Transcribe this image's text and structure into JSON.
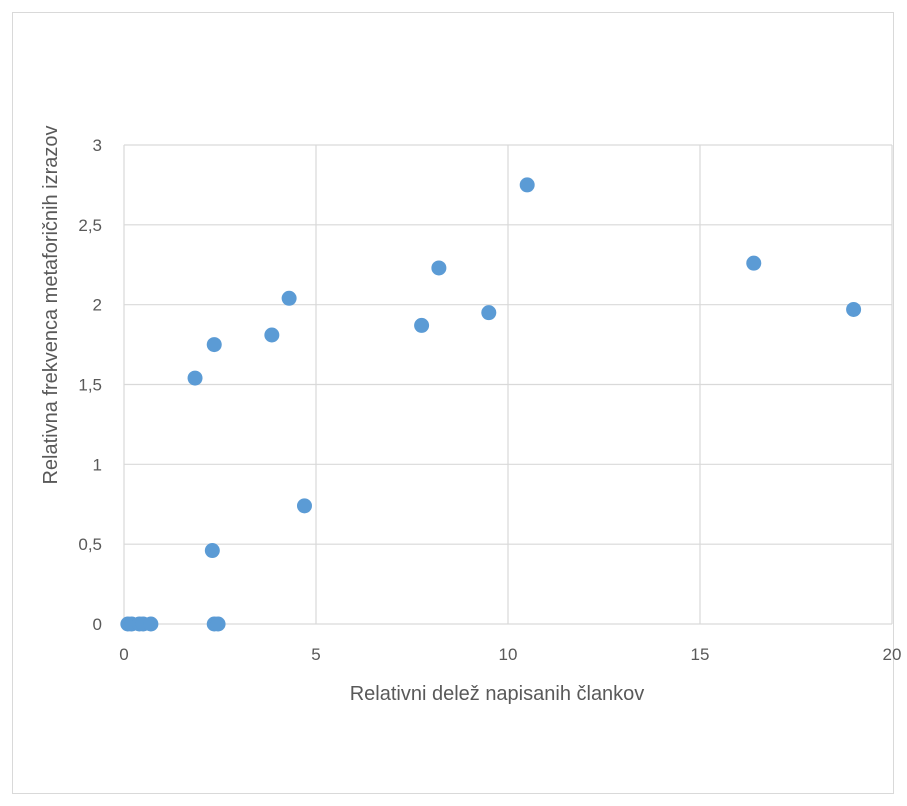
{
  "chart_data": {
    "type": "scatter",
    "xlabel": "Relativni delež napisanih člankov",
    "ylabel": "Relativna frekvenca metaforičnih izrazov",
    "xlim": [
      0,
      20
    ],
    "ylim": [
      0,
      3
    ],
    "x_ticks": [
      "0",
      "5",
      "10",
      "15",
      "20"
    ],
    "y_ticks": [
      "0",
      "0,5",
      "1",
      "1,5",
      "2",
      "2,5",
      "3"
    ],
    "grid": true,
    "marker_color": "#5b9bd5",
    "points": [
      {
        "x": 0.1,
        "y": 0
      },
      {
        "x": 0.2,
        "y": 0
      },
      {
        "x": 0.4,
        "y": 0
      },
      {
        "x": 0.5,
        "y": 0
      },
      {
        "x": 0.7,
        "y": 0
      },
      {
        "x": 1.85,
        "y": 1.54
      },
      {
        "x": 2.3,
        "y": 0.46
      },
      {
        "x": 2.35,
        "y": 1.75
      },
      {
        "x": 2.35,
        "y": 0
      },
      {
        "x": 2.45,
        "y": 0
      },
      {
        "x": 3.85,
        "y": 1.81
      },
      {
        "x": 4.3,
        "y": 2.04
      },
      {
        "x": 4.7,
        "y": 0.74
      },
      {
        "x": 7.75,
        "y": 1.87
      },
      {
        "x": 8.2,
        "y": 2.23
      },
      {
        "x": 9.5,
        "y": 1.95
      },
      {
        "x": 10.5,
        "y": 2.75
      },
      {
        "x": 16.4,
        "y": 2.26
      },
      {
        "x": 19.0,
        "y": 1.97
      }
    ]
  }
}
